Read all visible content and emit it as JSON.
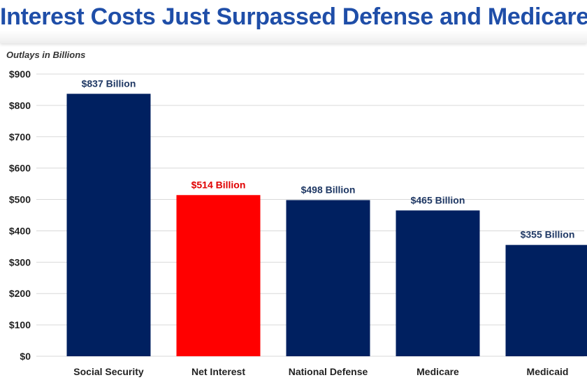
{
  "header": {
    "title": "Interest Costs Just Surpassed Defense and Medicare"
  },
  "chart_data": {
    "type": "bar",
    "title": "Interest Costs Just Surpassed Defense and Medicare",
    "ylabel": "Outlays in Billions",
    "xlabel": "",
    "categories": [
      "Social Security",
      "Net Interest",
      "National Defense",
      "Medicare",
      "Medicaid"
    ],
    "values": [
      837,
      514,
      498,
      465,
      355
    ],
    "data_labels": [
      "$837 Billion",
      "$514 Billion",
      "$498 Billion",
      "$465 Billion",
      "$355 Billion"
    ],
    "highlight_index": 1,
    "ylim": [
      0,
      900
    ],
    "yticks": [
      0,
      100,
      200,
      300,
      400,
      500,
      600,
      700,
      800,
      900
    ],
    "ytick_labels": [
      "$0",
      "$100",
      "$200",
      "$300",
      "$400",
      "$500",
      "$600",
      "$700",
      "$800",
      "$900"
    ],
    "grid": true,
    "colors": {
      "bar": "#002060",
      "highlight": "#ff0000",
      "label": "#1f3864",
      "highlight_label": "#e00000",
      "grid": "#d9d9d9",
      "title": "#1f4ea8"
    }
  }
}
